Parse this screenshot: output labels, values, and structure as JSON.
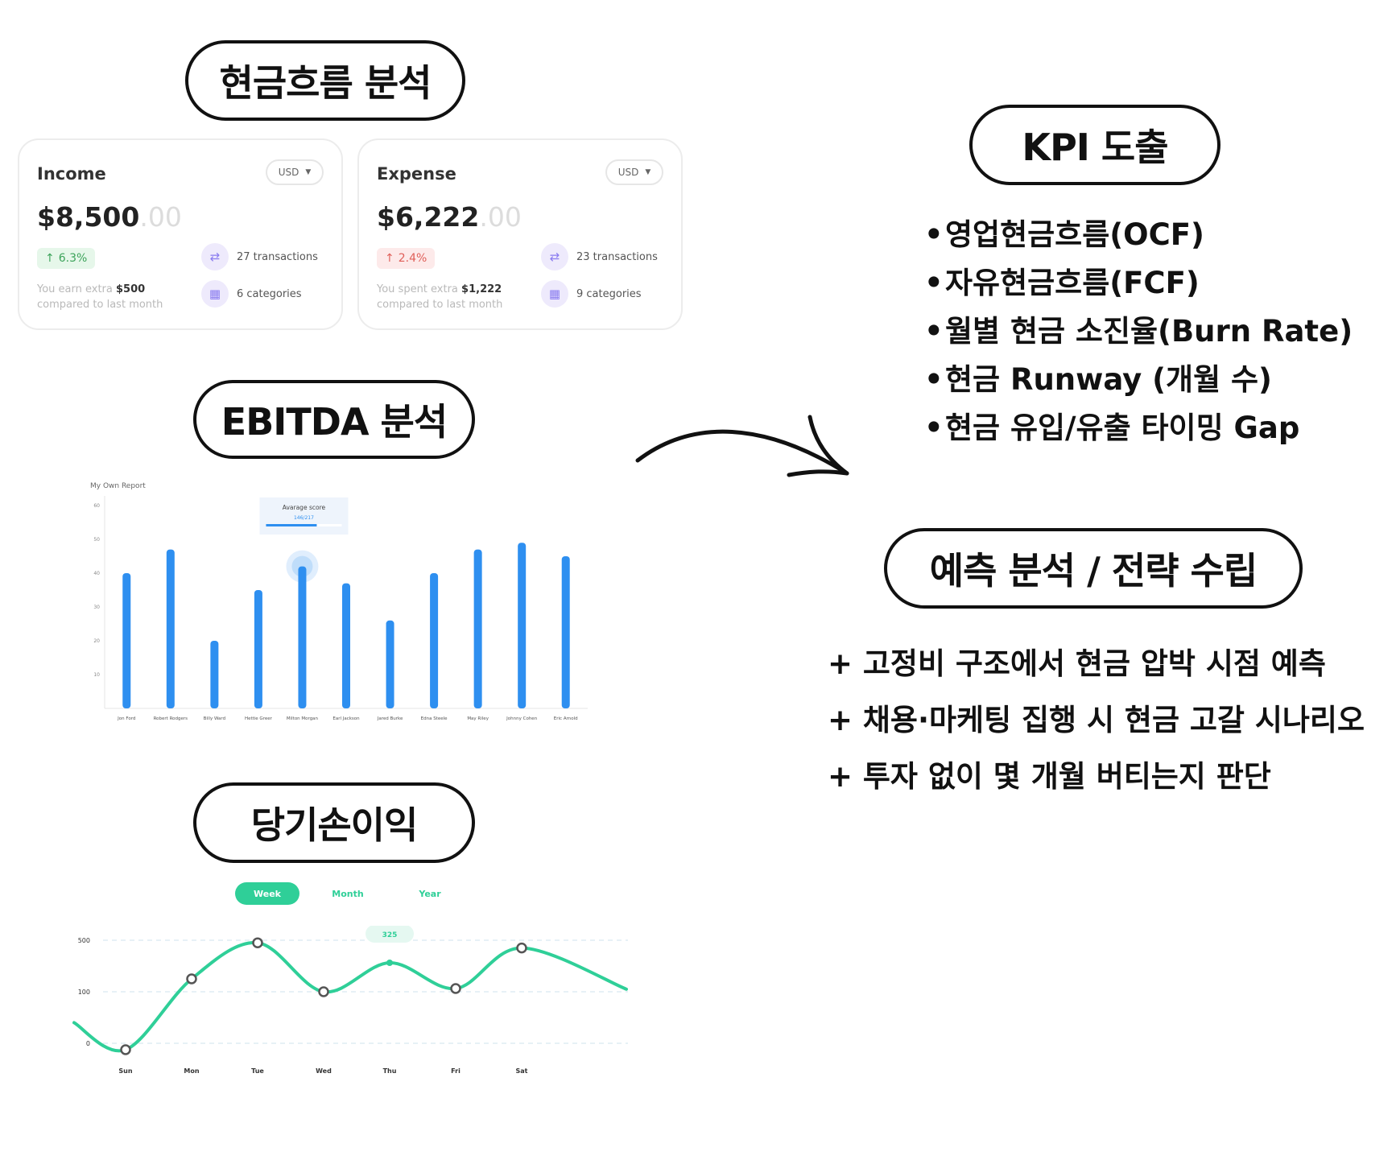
{
  "sections": {
    "cashflow_title": "현금흐름 분석",
    "ebitda_title": "EBITDA 분석",
    "net_income_title": "당기손이익",
    "kpi_title": "KPI 도출",
    "forecast_title": "예측 분석 / 전략 수립"
  },
  "income_card": {
    "title": "Income",
    "currency": "USD",
    "amount": "$8,500",
    "amount_decimal": ".00",
    "change": "6.3%",
    "note_prefix": "You earn extra",
    "note_value": "$500",
    "note_suffix": "compared to last month",
    "transactions": "27 transactions",
    "categories": "6 categories"
  },
  "expense_card": {
    "title": "Expense",
    "currency": "USD",
    "amount": "$6,222",
    "amount_decimal": ".00",
    "change": "2.4%",
    "note_prefix": "You spent extra",
    "note_value": "$1,222",
    "note_suffix": "compared to last month",
    "transactions": "23 transactions",
    "categories": "9 categories"
  },
  "kpi_items": [
    "영업현금흐름(OCF)",
    "자유현금흐름(FCF)",
    "월별 현금 소진율(Burn Rate)",
    "현금 Runway (개월 수)",
    "현금 유입/유출 타이밍 Gap"
  ],
  "bullet_glyph": "•",
  "plan_items": [
    "+ 고정비 구조에서 현금 압박 시점 예측",
    "+ 채용·마케팅 집행 시 현금 고갈 시나리오",
    "+ 투자 없이 몇 개월 버티는지 판단"
  ],
  "colors": {
    "bar": "#2e8ff0",
    "line": "#2fcf98",
    "badge_up": "#3ca35a",
    "badge_down": "#e0605a",
    "icon_bg": "#eeeafc"
  },
  "chart_data": [
    {
      "type": "bar",
      "title": "My Own Report",
      "categories": [
        "Jon Ford",
        "Robert Rodgers",
        "Billy Ward",
        "Hettie Greer",
        "Milton Morgan",
        "Earl Jackson",
        "Jared Burke",
        "Edna Steele",
        "May Riley",
        "Johnny Cohen",
        "Eric Arnold"
      ],
      "values": [
        40,
        47,
        20,
        35,
        42,
        37,
        26,
        40,
        47,
        49,
        45
      ],
      "ylim": [
        0,
        60
      ],
      "yticks": [
        10,
        20,
        30,
        40,
        50,
        60
      ],
      "highlight_index": 4,
      "tooltip": {
        "label": "Avarage score",
        "value": "146/217",
        "progress": 0.67
      }
    },
    {
      "type": "line",
      "tabs": [
        "Week",
        "Month",
        "Year"
      ],
      "active_tab": 0,
      "categories": [
        "Sun",
        "Mon",
        "Tue",
        "Wed",
        "Thu",
        "Fri",
        "Sat"
      ],
      "values": [
        -20,
        200,
        480,
        100,
        325,
        125,
        440
      ],
      "lead_in": 40,
      "lead_out": 120,
      "ytick_labels": [
        "500",
        "100",
        "0"
      ],
      "callout": {
        "index": 4,
        "label": "325"
      }
    }
  ]
}
